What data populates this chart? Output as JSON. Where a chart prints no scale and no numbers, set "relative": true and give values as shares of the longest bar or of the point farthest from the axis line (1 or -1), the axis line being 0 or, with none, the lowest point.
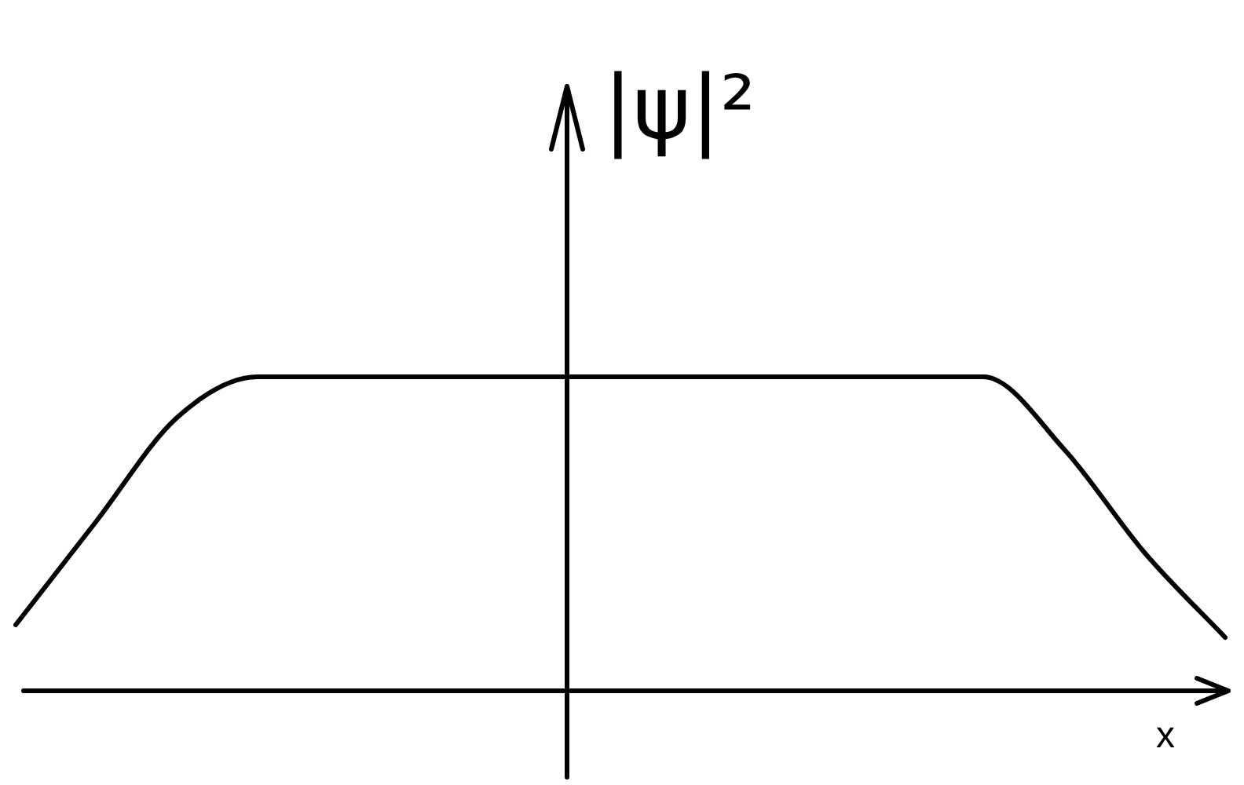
{
  "chart_data": {
    "type": "line",
    "relative": true,
    "xlabel": "x",
    "ylabel": "|ψ|²",
    "categories": [
      null,
      null,
      null,
      null,
      null,
      null,
      null,
      null,
      null,
      null,
      null,
      null,
      null,
      null,
      null,
      null
    ],
    "series": [
      {
        "color": "#000000",
        "values": [
          0.21,
          0.54,
          0.87,
          1,
          1,
          1,
          1,
          1,
          1,
          1,
          1,
          1,
          1,
          0.77,
          0.44,
          0.17
        ]
      }
    ],
    "marker": "none",
    "legend": false
  }
}
